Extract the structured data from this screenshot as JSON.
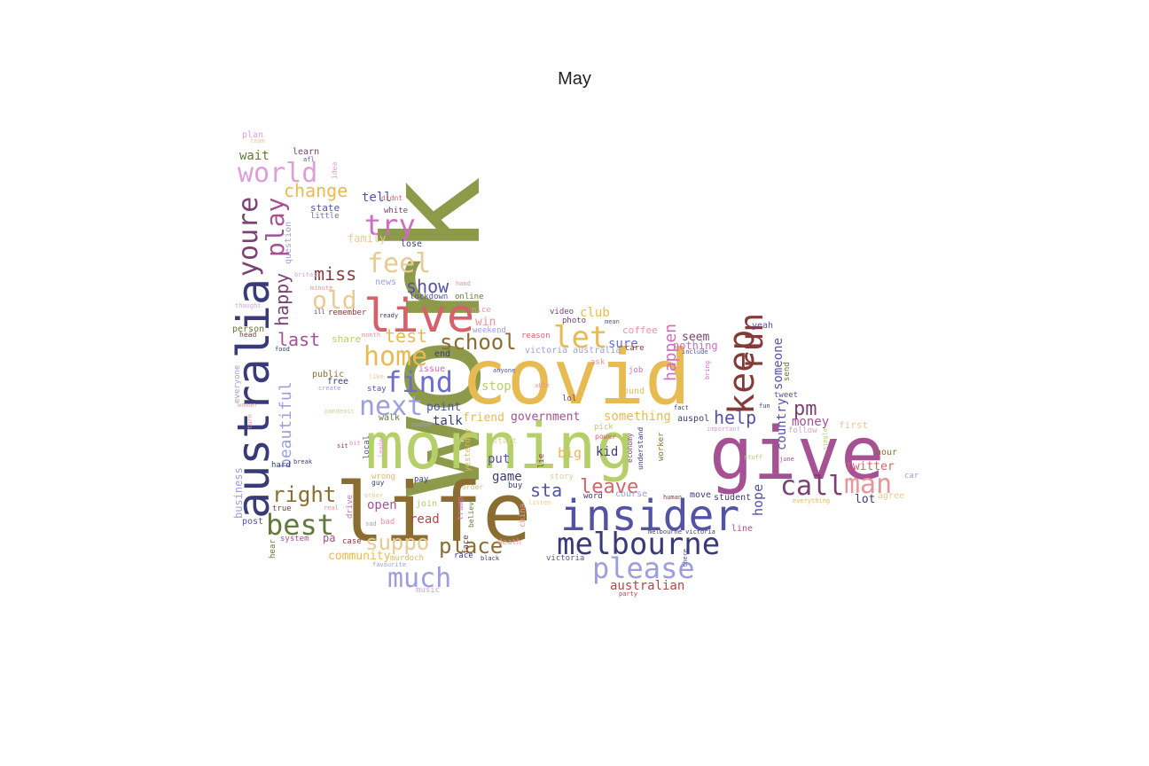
{
  "title": "May",
  "palette": {
    "olive": "#8c9a4a",
    "lime": "#b5cf6b",
    "gold": "#e7ba52",
    "sand": "#e7cb94",
    "brown": "#8c6d31",
    "navy": "#393b79",
    "indigo": "#5254a3",
    "blue": "#6b6ecf",
    "periwinkle": "#9c9ede",
    "purple": "#7b4173",
    "magenta": "#a55194",
    "orchid": "#ce6dbd",
    "lilac": "#de9ed6",
    "maroon": "#843c39",
    "red": "#ad494a",
    "rose": "#d6616b",
    "pink": "#e7969c",
    "green": "#637939"
  },
  "words": [
    {
      "text": "work",
      "color": "olive"
    },
    {
      "text": "morning",
      "color": "lime"
    },
    {
      "text": "covid",
      "color": "gold"
    },
    {
      "text": "life",
      "color": "brown"
    },
    {
      "text": "give",
      "color": "magenta"
    },
    {
      "text": "insider",
      "color": "indigo"
    },
    {
      "text": "australia",
      "color": "navy"
    },
    {
      "text": "melbourne",
      "color": "navy"
    },
    {
      "text": "live",
      "color": "rose"
    },
    {
      "text": "please",
      "color": "periwinkle"
    },
    {
      "text": "keep",
      "color": "maroon"
    },
    {
      "text": "run",
      "color": "maroon"
    },
    {
      "text": "much",
      "color": "periwinkle"
    },
    {
      "text": "youre",
      "color": "purple"
    },
    {
      "text": "world",
      "color": "lilac"
    },
    {
      "text": "play",
      "color": "magenta"
    },
    {
      "text": "try",
      "color": "orchid"
    },
    {
      "text": "feel",
      "color": "sand"
    },
    {
      "text": "old",
      "color": "sand"
    },
    {
      "text": "home",
      "color": "gold"
    },
    {
      "text": "find",
      "color": "blue"
    },
    {
      "text": "let",
      "color": "gold"
    },
    {
      "text": "next",
      "color": "periwinkle"
    },
    {
      "text": "best",
      "color": "green"
    },
    {
      "text": "call",
      "color": "purple"
    },
    {
      "text": "man",
      "color": "pink"
    },
    {
      "text": "right",
      "color": "brown"
    },
    {
      "text": "suppo",
      "color": "sand"
    },
    {
      "text": "place",
      "color": "brown"
    },
    {
      "text": "school",
      "color": "brown"
    },
    {
      "text": "change",
      "color": "gold"
    },
    {
      "text": "miss",
      "color": "maroon"
    },
    {
      "text": "show",
      "color": "indigo"
    },
    {
      "text": "happy",
      "color": "purple"
    },
    {
      "text": "last",
      "color": "magenta"
    },
    {
      "text": "test",
      "color": "gold"
    },
    {
      "text": "beautiful",
      "color": "periwinkle"
    },
    {
      "text": "happen",
      "color": "orchid"
    },
    {
      "text": "help",
      "color": "indigo"
    },
    {
      "text": "pm",
      "color": "purple"
    },
    {
      "text": "leave",
      "color": "rose"
    },
    {
      "text": "sta",
      "color": "indigo"
    },
    {
      "text": "australian",
      "color": "red"
    },
    {
      "text": "wait",
      "color": "green"
    },
    {
      "text": "tell",
      "color": "indigo"
    },
    {
      "text": "stop",
      "color": "lime"
    },
    {
      "text": "country",
      "color": "indigo"
    },
    {
      "text": "someone",
      "color": "indigo"
    },
    {
      "text": "seem",
      "color": "purple"
    },
    {
      "text": "money",
      "color": "magenta"
    },
    {
      "text": "twitter",
      "color": "rose"
    },
    {
      "text": "hope",
      "color": "indigo"
    },
    {
      "text": "lot",
      "color": "navy"
    },
    {
      "text": "something",
      "color": "gold"
    },
    {
      "text": "government",
      "color": "magenta"
    },
    {
      "text": "friend",
      "color": "gold"
    },
    {
      "text": "talk",
      "color": "navy"
    },
    {
      "text": "point",
      "color": "indigo"
    },
    {
      "text": "kid",
      "color": "navy"
    },
    {
      "text": "big",
      "color": "gold"
    },
    {
      "text": "put",
      "color": "indigo"
    },
    {
      "text": "game",
      "color": "navy"
    },
    {
      "text": "open",
      "color": "magenta"
    },
    {
      "text": "read",
      "color": "red"
    },
    {
      "text": "community",
      "color": "gold"
    },
    {
      "text": "club",
      "color": "gold"
    },
    {
      "text": "sure",
      "color": "blue"
    },
    {
      "text": "coffee",
      "color": "pink"
    },
    {
      "text": "nothing",
      "color": "orchid"
    },
    {
      "text": "first",
      "color": "sand"
    },
    {
      "text": "win",
      "color": "pink"
    },
    {
      "text": "share",
      "color": "lime"
    },
    {
      "text": "state",
      "color": "indigo"
    },
    {
      "text": "family",
      "color": "sand"
    },
    {
      "text": "business",
      "color": "periwinkle"
    },
    {
      "text": "question",
      "color": "periwinkle"
    },
    {
      "text": "little",
      "color": "blue"
    },
    {
      "text": "plan",
      "color": "lilac"
    },
    {
      "text": "learn",
      "color": "purple"
    },
    {
      "text": "white",
      "color": "purple"
    },
    {
      "text": "lose",
      "color": "navy"
    },
    {
      "text": "news",
      "color": "periwinkle"
    },
    {
      "text": "online",
      "color": "green"
    },
    {
      "text": "lockdown",
      "color": "indigo"
    },
    {
      "text": "remember",
      "color": "maroon"
    },
    {
      "text": "person",
      "color": "green"
    },
    {
      "text": "everyone",
      "color": "periwinkle"
    },
    {
      "text": "public",
      "color": "brown"
    },
    {
      "text": "free",
      "color": "navy"
    },
    {
      "text": "stay",
      "color": "indigo"
    },
    {
      "text": "walk",
      "color": "green"
    },
    {
      "text": "issue",
      "color": "orchid"
    },
    {
      "text": "end",
      "color": "navy"
    },
    {
      "text": "weekend",
      "color": "periwinkle"
    },
    {
      "text": "reason",
      "color": "rose"
    },
    {
      "text": "video",
      "color": "purple"
    },
    {
      "text": "photo",
      "color": "purple"
    },
    {
      "text": "victoria australia",
      "color": "periwinkle"
    },
    {
      "text": "ask",
      "color": "pink"
    },
    {
      "text": "care",
      "color": "maroon"
    },
    {
      "text": "job",
      "color": "orchid"
    },
    {
      "text": "lol",
      "color": "purple"
    },
    {
      "text": "sound",
      "color": "gold"
    },
    {
      "text": "word",
      "color": "navy"
    },
    {
      "text": "course",
      "color": "periwinkle"
    },
    {
      "text": "pick",
      "color": "lime"
    },
    {
      "text": "power",
      "color": "rose"
    },
    {
      "text": "auspol",
      "color": "navy"
    },
    {
      "text": "student",
      "color": "navy"
    },
    {
      "text": "move",
      "color": "navy"
    },
    {
      "text": "line",
      "color": "magenta"
    },
    {
      "text": "yeah",
      "color": "indigo"
    },
    {
      "text": "send",
      "color": "green"
    },
    {
      "text": "tweet",
      "color": "indigo"
    },
    {
      "text": "follow",
      "color": "lilac"
    },
    {
      "text": "hour",
      "color": "brown"
    },
    {
      "text": "agree",
      "color": "sand"
    },
    {
      "text": "car",
      "color": "periwinkle"
    },
    {
      "text": "true",
      "color": "maroon"
    },
    {
      "text": "post",
      "color": "indigo"
    },
    {
      "text": "system",
      "color": "magenta"
    },
    {
      "text": "hear",
      "color": "green"
    },
    {
      "text": "hard",
      "color": "navy"
    },
    {
      "text": "pa",
      "color": "magenta"
    },
    {
      "text": "case",
      "color": "maroon"
    },
    {
      "text": "murdoch",
      "color": "gold"
    },
    {
      "text": "race",
      "color": "navy"
    },
    {
      "text": "victoria",
      "color": "indigo"
    },
    {
      "text": "story",
      "color": "sand"
    },
    {
      "text": "buy",
      "color": "navy"
    },
    {
      "text": "order",
      "color": "lime"
    },
    {
      "text": "wrong",
      "color": "gold"
    },
    {
      "text": "guy",
      "color": "navy"
    },
    {
      "text": "bad",
      "color": "pink"
    },
    {
      "text": "pay",
      "color": "navy"
    },
    {
      "text": "join",
      "color": "lime"
    },
    {
      "text": "drive",
      "color": "orchid"
    },
    {
      "text": "trump",
      "color": "orchid"
    },
    {
      "text": "believe",
      "color": "green"
    },
    {
      "text": "yesterday",
      "color": "gold"
    },
    {
      "text": "china",
      "color": "pink"
    },
    {
      "text": "face",
      "color": "maroon"
    },
    {
      "text": "music",
      "color": "lilac"
    },
    {
      "text": "death",
      "color": "pink"
    },
    {
      "text": "worker",
      "color": "brown"
    },
    {
      "text": "understand",
      "color": "navy"
    },
    {
      "text": "lie",
      "color": "maroon"
    },
    {
      "text": "start",
      "color": "sand"
    },
    {
      "text": "local",
      "color": "indigo"
    },
    {
      "text": "nice",
      "color": "pink"
    },
    {
      "text": "idea",
      "color": "lilac"
    },
    {
      "text": "didnt",
      "color": "rose"
    },
    {
      "text": "team",
      "color": "sand"
    },
    {
      "text": "afl",
      "color": "indigo"
    },
    {
      "text": "ready",
      "color": "navy"
    },
    {
      "text": "mean",
      "color": "indigo"
    },
    {
      "text": "hand",
      "color": "pink"
    },
    {
      "text": "minute",
      "color": "pink"
    },
    {
      "text": "ill",
      "color": "navy"
    },
    {
      "text": "thought",
      "color": "lilac"
    },
    {
      "text": "month",
      "color": "pink"
    },
    {
      "text": "head",
      "color": "maroon"
    },
    {
      "text": "food",
      "color": "navy"
    },
    {
      "text": "create",
      "color": "periwinkle"
    },
    {
      "text": "like",
      "color": "sand"
    },
    {
      "text": "anyone",
      "color": "indigo"
    },
    {
      "text": "able",
      "color": "pink"
    },
    {
      "text": "include",
      "color": "indigo"
    },
    {
      "text": "important",
      "color": "lilac"
    },
    {
      "text": "fact",
      "color": "navy"
    },
    {
      "text": "bring",
      "color": "orchid"
    },
    {
      "text": "fun",
      "color": "navy"
    },
    {
      "text": "june",
      "color": "magenta"
    },
    {
      "text": "stuff",
      "color": "lime"
    },
    {
      "text": "everything",
      "color": "gold"
    },
    {
      "text": "human",
      "color": "maroon"
    },
    {
      "text": "melbourne victoria",
      "color": "navy"
    },
    {
      "text": "there",
      "color": "indigo"
    },
    {
      "text": "party",
      "color": "red"
    },
    {
      "text": "favourite",
      "color": "periwinkle"
    },
    {
      "text": "black",
      "color": "navy"
    },
    {
      "text": "listen",
      "color": "sand"
    },
    {
      "text": "real",
      "color": "pink"
    },
    {
      "text": "sad",
      "color": "periwinkle"
    },
    {
      "text": "other",
      "color": "sand"
    },
    {
      "text": "number",
      "color": "periwinkle"
    },
    {
      "text": "break",
      "color": "navy"
    },
    {
      "text": "turn",
      "color": "pink"
    },
    {
      "text": "sit",
      "color": "maroon"
    },
    {
      "text": "bit",
      "color": "pink"
    },
    {
      "text": "woman",
      "color": "pink"
    },
    {
      "text": "pandemic",
      "color": "sand"
    },
    {
      "text": "leader",
      "color": "lilac"
    },
    {
      "text": "britain",
      "color": "lilac"
    },
    {
      "text": "economy",
      "color": "purple"
    },
    {
      "text": "single",
      "color": "lime"
    }
  ]
}
